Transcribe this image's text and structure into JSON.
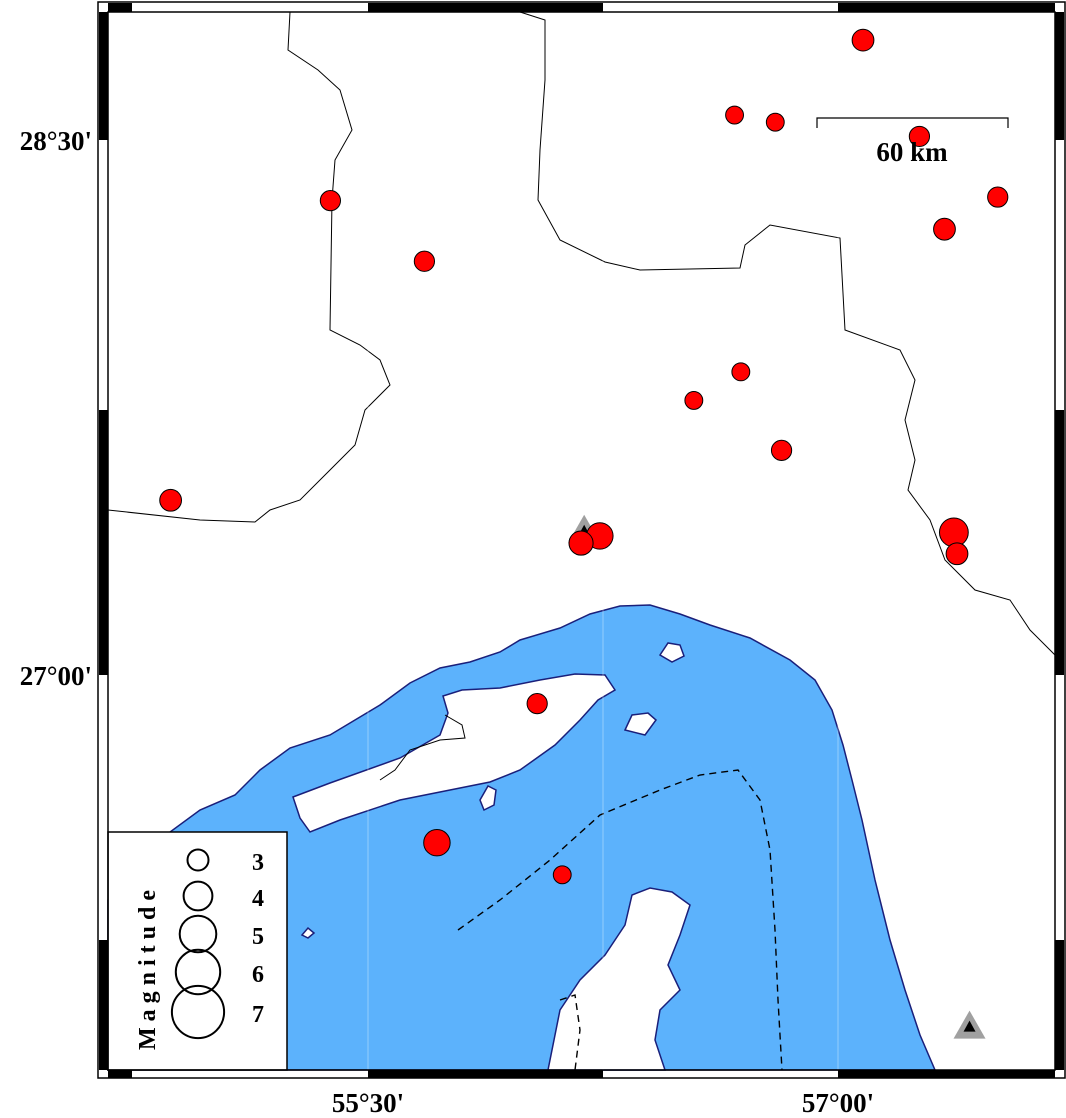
{
  "map": {
    "lon_ticks": [
      {
        "value": 55.5,
        "label": "55°30'"
      },
      {
        "value": 57.0,
        "label": "57°00'"
      }
    ],
    "lat_ticks": [
      {
        "value": 28.5,
        "label": "28°30'"
      },
      {
        "value": 27.0,
        "label": "27°00'"
      }
    ],
    "colors": {
      "water": "#5cb2fc",
      "land": "#ffffff",
      "coast": "#1a1f7a",
      "event": "#ff0000",
      "station": "#a0a0a0"
    },
    "scale_bar": {
      "label": "60 km"
    },
    "legend": {
      "title": "Magnitude",
      "magnitudes": [
        3,
        4,
        5,
        6,
        7
      ]
    },
    "events": [
      {
        "lon": 57.08,
        "lat": 28.78,
        "mag": 3.1
      },
      {
        "lon": 56.67,
        "lat": 28.57,
        "mag": 2.6
      },
      {
        "lon": 56.8,
        "lat": 28.55,
        "mag": 2.6
      },
      {
        "lon": 57.26,
        "lat": 28.51,
        "mag": 2.9
      },
      {
        "lon": 57.51,
        "lat": 28.34,
        "mag": 2.9
      },
      {
        "lon": 57.34,
        "lat": 28.25,
        "mag": 3.1
      },
      {
        "lon": 55.38,
        "lat": 28.33,
        "mag": 2.9
      },
      {
        "lon": 55.68,
        "lat": 28.16,
        "mag": 2.9
      },
      {
        "lon": 56.69,
        "lat": 27.85,
        "mag": 2.6
      },
      {
        "lon": 56.54,
        "lat": 27.77,
        "mag": 2.6
      },
      {
        "lon": 56.82,
        "lat": 27.63,
        "mag": 2.9
      },
      {
        "lon": 54.87,
        "lat": 27.49,
        "mag": 3.1
      },
      {
        "lon": 56.24,
        "lat": 27.39,
        "mag": 3.7
      },
      {
        "lon": 56.18,
        "lat": 27.37,
        "mag": 3.4
      },
      {
        "lon": 57.37,
        "lat": 27.4,
        "mag": 4.0
      },
      {
        "lon": 57.38,
        "lat": 27.34,
        "mag": 3.1
      },
      {
        "lon": 56.04,
        "lat": 26.92,
        "mag": 2.9
      },
      {
        "lon": 55.72,
        "lat": 26.53,
        "mag": 3.7
      },
      {
        "lon": 56.12,
        "lat": 26.44,
        "mag": 2.6
      }
    ],
    "stations": [
      {
        "lon": 56.19,
        "lat": 27.41
      },
      {
        "lon": 57.42,
        "lat": 26.02
      }
    ]
  }
}
